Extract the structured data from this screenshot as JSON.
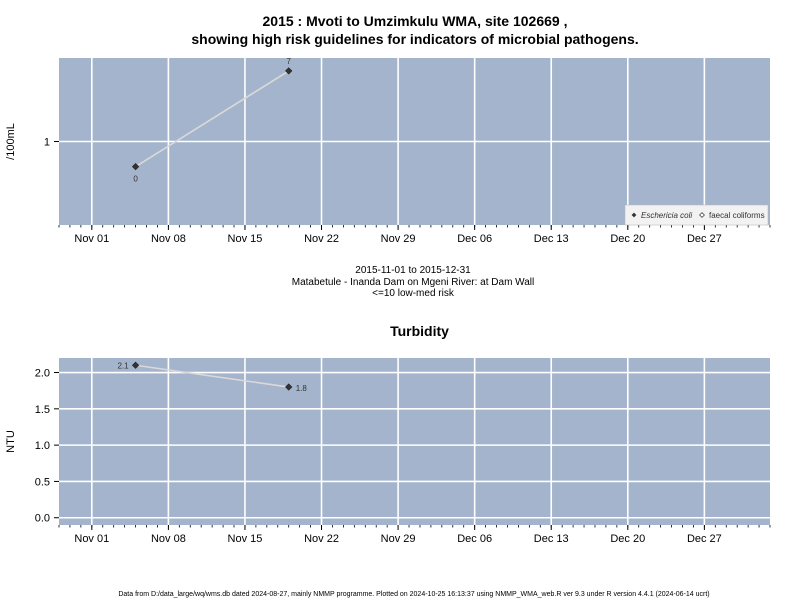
{
  "header": {
    "title_line1": "2015 : Mvoti to Umzimkulu WMA, site 102669 ,",
    "title_line2": "showing high risk guidelines for indicators of microbial pathogens."
  },
  "subtitle": {
    "date_range": "2015-11-01 to 2015-12-31",
    "site_name": "Matabetule - Inanda Dam on Mgeni River: at Dam Wall",
    "risk_note": "<=10 low-med risk"
  },
  "footer": {
    "text": "Data from D:/data_large/wq/wms.db dated 2024-08-27, mainly NMMP programme. Plotted on 2024-10-25 16:13:37 using NMMP_WMA_web.R ver 9.3 under R version 4.4.1 (2024-06-14 ucrt)"
  },
  "colors": {
    "panel_bg": "#a3b4cc",
    "grid": "#ffffff",
    "line": "#d9d9d9",
    "point": "#333333"
  },
  "chart_data": [
    {
      "type": "line",
      "title": "",
      "ylabel": "/100mL",
      "yscale": "log",
      "ylim": [
        0.1,
        10
      ],
      "yticks": [
        1
      ],
      "ytick_labels": [
        "1"
      ],
      "xlim": [
        "2015-10-29",
        "2016-01-02"
      ],
      "xticks": [
        "2015-11-01",
        "2015-11-08",
        "2015-11-15",
        "2015-11-22",
        "2015-11-29",
        "2015-12-06",
        "2015-12-13",
        "2015-12-20",
        "2015-12-27"
      ],
      "xtick_labels": [
        "Nov 01",
        "Nov 08",
        "Nov 15",
        "Nov 22",
        "Nov 29",
        "Dec 06",
        "Dec 13",
        "Dec 20",
        "Dec 27"
      ],
      "legend": {
        "placement": "bottom-right",
        "entries": [
          "Eschericia coli",
          "faecal coliforms"
        ]
      },
      "series": [
        {
          "name": "Eschericia coli",
          "x": [
            "2015-11-05",
            "2015-11-19"
          ],
          "y": [
            0.5,
            7
          ],
          "labels": [
            "0",
            "7"
          ]
        }
      ]
    },
    {
      "type": "line",
      "title": "Turbidity",
      "ylabel": "NTU",
      "ylim": [
        -0.1,
        2.2
      ],
      "yticks": [
        0,
        0.5,
        1,
        1.5,
        2
      ],
      "ytick_labels": [
        "0.0",
        "0.5",
        "1.0",
        "1.5",
        "2.0"
      ],
      "xlim": [
        "2015-10-29",
        "2016-01-02"
      ],
      "xticks": [
        "2015-11-01",
        "2015-11-08",
        "2015-11-15",
        "2015-11-22",
        "2015-11-29",
        "2015-12-06",
        "2015-12-13",
        "2015-12-20",
        "2015-12-27"
      ],
      "xtick_labels": [
        "Nov 01",
        "Nov 08",
        "Nov 15",
        "Nov 22",
        "Nov 29",
        "Dec 06",
        "Dec 13",
        "Dec 20",
        "Dec 27"
      ],
      "series": [
        {
          "name": "",
          "x": [
            "2015-11-05",
            "2015-11-19"
          ],
          "y": [
            2.1,
            1.8
          ],
          "labels": [
            "2.1",
            "1.8"
          ]
        }
      ]
    }
  ]
}
